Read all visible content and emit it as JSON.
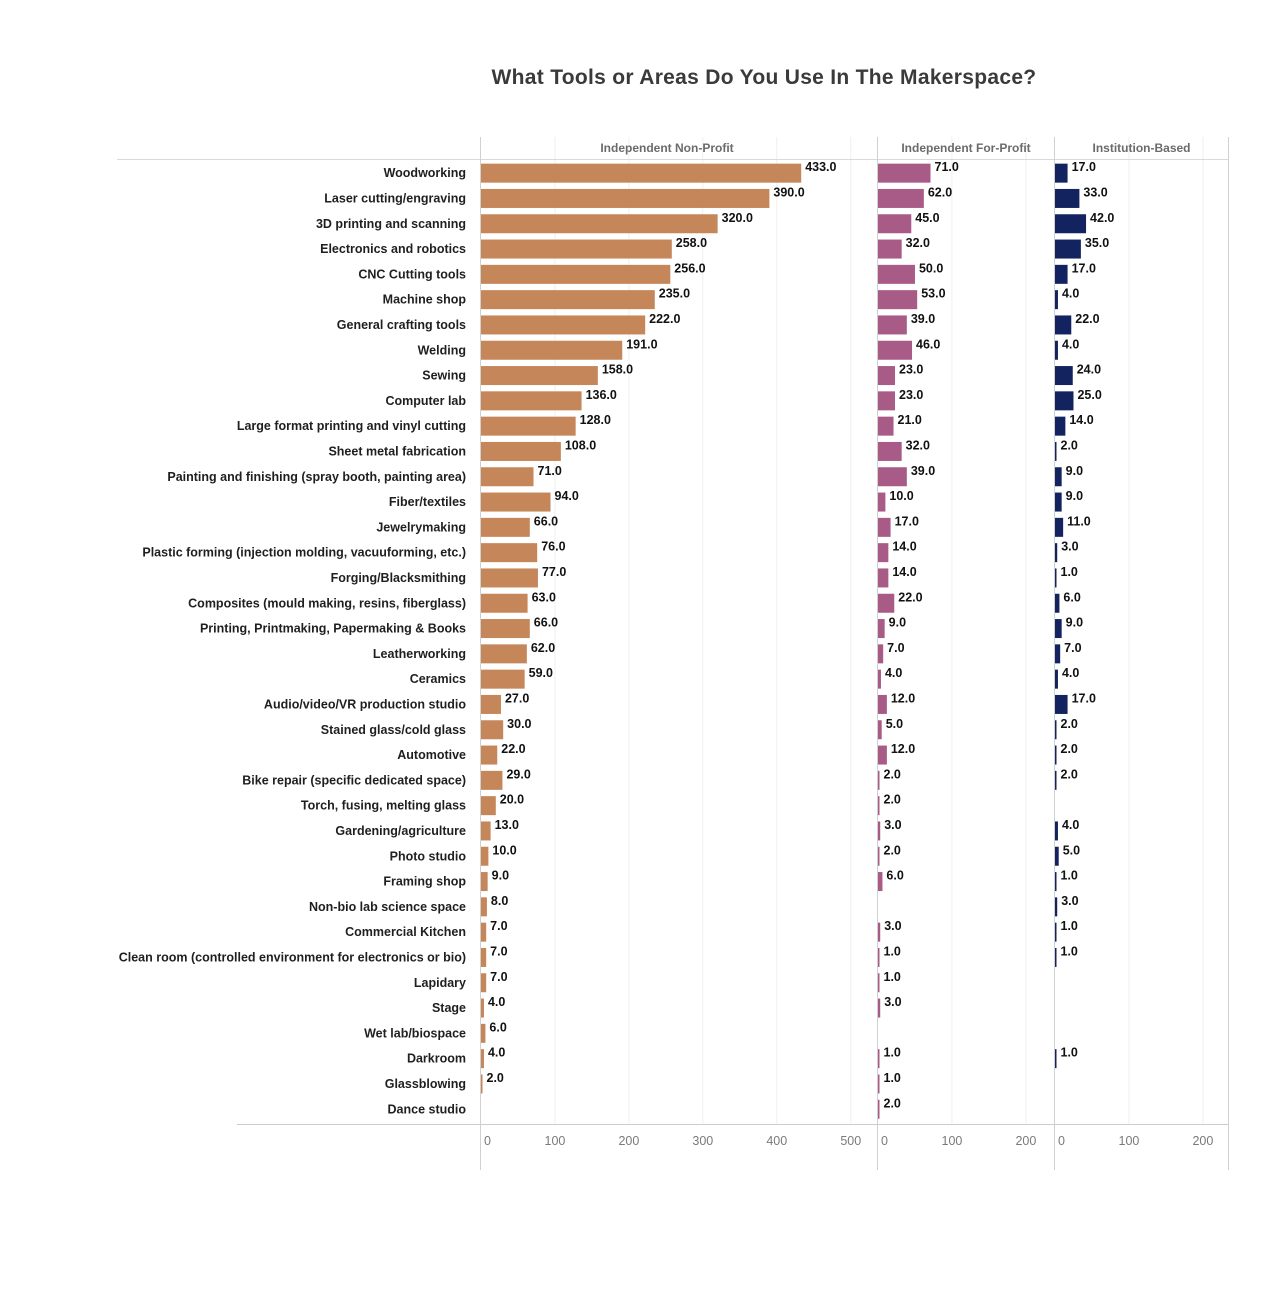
{
  "title": "What Tools or Areas Do You Use In The Makerspace?",
  "chart_data": {
    "type": "bar",
    "orientation": "horizontal",
    "title": "What Tools or Areas Do You Use In The Makerspace?",
    "categories": [
      "Woodworking",
      "Laser cutting/engraving",
      "3D printing and scanning",
      "Electronics and robotics",
      "CNC Cutting tools",
      "Machine shop",
      "General crafting tools",
      "Welding",
      "Sewing",
      "Computer lab",
      "Large format printing and vinyl cutting",
      "Sheet metal fabrication",
      "Painting and finishing (spray booth, painting area)",
      "Fiber/textiles",
      "Jewelrymaking",
      "Plastic forming (injection molding, vacuuforming, etc.)",
      "Forging/Blacksmithing",
      "Composites (mould making, resins, fiberglass)",
      "Printing, Printmaking, Papermaking & Books",
      "Leatherworking",
      "Ceramics",
      "Audio/video/VR production studio",
      "Stained glass/cold glass",
      "Automotive",
      "Bike repair (specific dedicated space)",
      "Torch, fusing, melting glass",
      "Gardening/agriculture",
      "Photo studio",
      "Framing shop",
      "Non-bio lab science space",
      "Commercial Kitchen",
      "Clean room (controlled environment for electronics or bio)",
      "Lapidary",
      "Stage",
      "Wet lab/biospace",
      "Darkroom",
      "Glassblowing",
      "Dance studio"
    ],
    "panels": [
      {
        "name": "Independent Non-Profit",
        "color": "#c5865a",
        "xlim": [
          0,
          530
        ],
        "ticks": [
          0,
          100,
          200,
          300,
          400,
          500
        ],
        "tick_labels": [
          "0",
          "100",
          "200",
          "300",
          "400",
          "500"
        ],
        "values": [
          433,
          390,
          320,
          258,
          256,
          235,
          222,
          191,
          158,
          136,
          128,
          108,
          71,
          94,
          66,
          76,
          77,
          63,
          66,
          62,
          59,
          27,
          30,
          22,
          29,
          20,
          13,
          10,
          9,
          8,
          7,
          7,
          7,
          4,
          6,
          4,
          2,
          null
        ],
        "labels": [
          "433.0",
          "390.0",
          "320.0",
          "258.0",
          "256.0",
          "235.0",
          "222.0",
          "191.0",
          "158.0",
          "136.0",
          "128.0",
          "108.0",
          "71.0",
          "94.0",
          "66.0",
          "76.0",
          "77.0",
          "63.0",
          "66.0",
          "62.0",
          "59.0",
          "27.0",
          "30.0",
          "22.0",
          "29.0",
          "20.0",
          "13.0",
          "10.0",
          "9.0",
          "8.0",
          "7.0",
          "7.0",
          "7.0",
          "4.0",
          "6.0",
          "4.0",
          "2.0",
          ""
        ]
      },
      {
        "name": "Independent For-Profit",
        "color": "#a85b87",
        "xlim": [
          0,
          236
        ],
        "ticks": [
          0,
          100,
          200
        ],
        "tick_labels": [
          "0",
          "100",
          "200"
        ],
        "values": [
          71,
          62,
          45,
          32,
          50,
          53,
          39,
          46,
          23,
          23,
          21,
          32,
          39,
          10,
          17,
          14,
          14,
          22,
          9,
          7,
          4,
          12,
          5,
          12,
          2,
          2,
          3,
          2,
          6,
          null,
          3,
          1,
          1,
          3,
          null,
          1,
          1,
          2
        ],
        "labels": [
          "71.0",
          "62.0",
          "45.0",
          "32.0",
          "50.0",
          "53.0",
          "39.0",
          "46.0",
          "23.0",
          "23.0",
          "21.0",
          "32.0",
          "39.0",
          "10.0",
          "17.0",
          "14.0",
          "14.0",
          "22.0",
          "9.0",
          "7.0",
          "4.0",
          "12.0",
          "5.0",
          "12.0",
          "2.0",
          "2.0",
          "3.0",
          "2.0",
          "6.0",
          "",
          "3.0",
          "1.0",
          "1.0",
          "3.0",
          "",
          "1.0",
          "1.0",
          "2.0"
        ]
      },
      {
        "name": "Institution-Based",
        "color": "#13235f",
        "xlim": [
          0,
          236
        ],
        "ticks": [
          0,
          100,
          200
        ],
        "tick_labels": [
          "0",
          "100",
          "200"
        ],
        "values": [
          17,
          33,
          42,
          35,
          17,
          4,
          22,
          4,
          24,
          25,
          14,
          2,
          9,
          9,
          11,
          3,
          1,
          6,
          9,
          7,
          4,
          17,
          2,
          2,
          2,
          null,
          4,
          5,
          1,
          3,
          1,
          1,
          null,
          null,
          null,
          1,
          null,
          null
        ],
        "labels": [
          "17.0",
          "33.0",
          "42.0",
          "35.0",
          "17.0",
          "4.0",
          "22.0",
          "4.0",
          "24.0",
          "25.0",
          "14.0",
          "2.0",
          "9.0",
          "9.0",
          "11.0",
          "3.0",
          "1.0",
          "6.0",
          "9.0",
          "7.0",
          "4.0",
          "17.0",
          "2.0",
          "2.0",
          "2.0",
          "",
          "4.0",
          "5.0",
          "1.0",
          "3.0",
          "1.0",
          "1.0",
          "",
          "",
          "",
          "1.0",
          "",
          ""
        ]
      }
    ],
    "grid": true,
    "legend": "none"
  }
}
